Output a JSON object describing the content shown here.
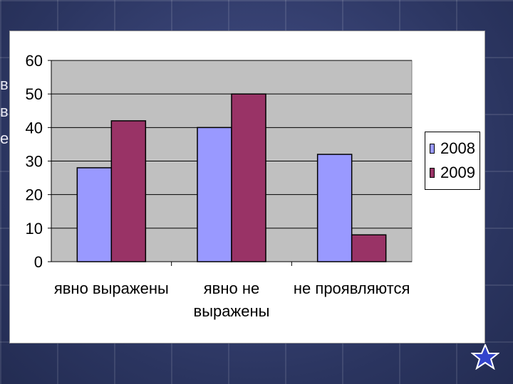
{
  "background_text": [
    "в",
    "в",
    "е"
  ],
  "chart_data": {
    "type": "bar",
    "categories": [
      [
        "явно выражены"
      ],
      [
        "явно не",
        "выражены"
      ],
      [
        "не проявляются"
      ]
    ],
    "series": [
      {
        "name": "2008",
        "values": [
          28,
          40,
          32
        ],
        "color": "#9999ff"
      },
      {
        "name": "2009",
        "values": [
          42,
          50,
          8
        ],
        "color": "#993366"
      }
    ],
    "ylim": [
      0,
      60
    ],
    "yticks": [
      "0",
      "10",
      "20",
      "30",
      "40",
      "50",
      "60"
    ],
    "plot_background": "#c0c0c0",
    "grid": true,
    "legend_position": "right"
  },
  "icons": {
    "star": "star-icon",
    "star_color": "#3344cc"
  }
}
